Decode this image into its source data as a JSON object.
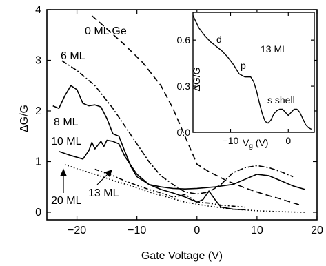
{
  "chart_data": [
    {
      "type": "line",
      "xlabel": "Gate Voltage (V)",
      "ylabel": "ΔG/G",
      "xlim": [
        -25,
        20
      ],
      "ylim": [
        -0.15,
        4.0
      ],
      "x_ticks": [
        -20,
        -10,
        0,
        10,
        20
      ],
      "y_ticks": [
        0,
        1,
        2,
        3,
        4
      ],
      "series": [
        {
          "name": "0 ML Ge",
          "style": "dashed",
          "points": [
            [
              -17.5,
              3.88
            ],
            [
              -15,
              3.62
            ],
            [
              -12,
              3.3
            ],
            [
              -9,
              2.95
            ],
            [
              -6,
              2.5
            ],
            [
              -4,
              2.05
            ],
            [
              -2,
              1.5
            ],
            [
              0,
              0.95
            ],
            [
              2,
              0.8
            ],
            [
              5,
              0.62
            ],
            [
              8,
              0.48
            ],
            [
              11,
              0.36
            ],
            [
              14,
              0.26
            ],
            [
              17,
              0.15
            ]
          ]
        },
        {
          "name": "6 ML",
          "style": "dash-dot",
          "points": [
            [
              -22.5,
              2.99
            ],
            [
              -20,
              2.8
            ],
            [
              -17,
              2.5
            ],
            [
              -14,
              2.05
            ],
            [
              -12,
              1.7
            ],
            [
              -10,
              1.35
            ],
            [
              -8,
              1.0
            ],
            [
              -6,
              0.72
            ],
            [
              -4,
              0.55
            ],
            [
              -2,
              0.4
            ],
            [
              0,
              0.36
            ],
            [
              2,
              0.4
            ],
            [
              4,
              0.55
            ],
            [
              6,
              0.78
            ],
            [
              8,
              0.88
            ],
            [
              10,
              0.92
            ],
            [
              12,
              0.88
            ],
            [
              14,
              0.8
            ],
            [
              16,
              0.7
            ]
          ]
        },
        {
          "name": "8 ML",
          "style": "solid",
          "points": [
            [
              -24,
              2.1
            ],
            [
              -23,
              2.05
            ],
            [
              -22,
              2.3
            ],
            [
              -21,
              2.5
            ],
            [
              -20,
              2.42
            ],
            [
              -19,
              2.15
            ],
            [
              -18,
              2.1
            ],
            [
              -17,
              2.12
            ],
            [
              -16,
              2.08
            ],
            [
              -15,
              1.85
            ],
            [
              -14,
              1.55
            ],
            [
              -13,
              1.5
            ],
            [
              -12,
              1.2
            ],
            [
              -11,
              0.9
            ],
            [
              -10,
              0.7
            ],
            [
              -8,
              0.55
            ],
            [
              -6,
              0.5
            ],
            [
              -4,
              0.47
            ],
            [
              -2,
              0.46
            ],
            [
              0,
              0.47
            ],
            [
              3,
              0.5
            ],
            [
              6,
              0.55
            ],
            [
              8,
              0.65
            ],
            [
              10,
              0.75
            ],
            [
              12,
              0.72
            ],
            [
              14,
              0.62
            ],
            [
              16,
              0.52
            ],
            [
              18,
              0.45
            ]
          ]
        },
        {
          "name": "10 ML",
          "style": "solid",
          "points": [
            [
              -23,
              1.2
            ],
            [
              -21,
              1.12
            ],
            [
              -19,
              1.05
            ],
            [
              -18,
              1.22
            ],
            [
              -17.5,
              1.38
            ],
            [
              -17,
              1.25
            ],
            [
              -16,
              1.4
            ],
            [
              -15.5,
              1.3
            ],
            [
              -15,
              1.42
            ],
            [
              -14,
              1.4
            ],
            [
              -13,
              1.35
            ],
            [
              -12,
              1.1
            ],
            [
              -10,
              0.75
            ],
            [
              -8,
              0.55
            ],
            [
              -6,
              0.45
            ],
            [
              -4,
              0.38
            ],
            [
              -2,
              0.3
            ],
            [
              0,
              0.2
            ],
            [
              1,
              0.25
            ],
            [
              2,
              0.42
            ],
            [
              3,
              0.25
            ],
            [
              4,
              0.1
            ],
            [
              6,
              0.06
            ],
            [
              8,
              0.05
            ]
          ]
        },
        {
          "name": "20 ML",
          "style": "dotted",
          "points": [
            [
              -22,
              0.94
            ],
            [
              -20,
              0.86
            ],
            [
              -17,
              0.75
            ],
            [
              -14,
              0.63
            ],
            [
              -11,
              0.52
            ],
            [
              -8,
              0.4
            ],
            [
              -5,
              0.3
            ],
            [
              -2,
              0.2
            ],
            [
              2,
              0.12
            ],
            [
              6,
              0.06
            ],
            [
              10,
              0.03
            ],
            [
              14,
              0.01
            ],
            [
              18,
              0.0
            ]
          ]
        },
        {
          "name": "13 ML",
          "style": "dash-dot-dot",
          "points": [
            [
              -17,
              0.85
            ],
            [
              -14,
              0.72
            ],
            [
              -12,
              0.62
            ],
            [
              -10,
              0.53
            ],
            [
              -8,
              0.45
            ],
            [
              -6,
              0.38
            ],
            [
              -4,
              0.3
            ],
            [
              -3,
              0.32
            ],
            [
              -2,
              0.35
            ],
            [
              -1,
              0.28
            ],
            [
              0,
              0.2
            ],
            [
              2,
              0.18
            ],
            [
              4,
              0.14
            ],
            [
              6,
              0.12
            ],
            [
              8,
              0.1
            ]
          ]
        }
      ],
      "labels": [
        {
          "text": "0 ML Ge"
        },
        {
          "text": "6 ML"
        },
        {
          "text": "8 ML"
        },
        {
          "text": "10 ML"
        },
        {
          "text": "20 ML"
        },
        {
          "text": "13 ML"
        }
      ]
    },
    {
      "type": "line",
      "xlabel": "V_g (V)",
      "ylabel": "ΔG/G",
      "xlim": [
        -16.5,
        4.5
      ],
      "ylim": [
        0.0,
        0.78
      ],
      "x_ticks": [
        -10,
        0
      ],
      "y_ticks": [
        0.0,
        0.3,
        0.6
      ],
      "title": "13 ML",
      "annotations": [
        "d",
        "p",
        "s shell"
      ],
      "series": [
        {
          "name": "13 ML",
          "points": [
            [
              -16.5,
              0.76
            ],
            [
              -15.5,
              0.68
            ],
            [
              -14.5,
              0.63
            ],
            [
              -13.5,
              0.59
            ],
            [
              -12.5,
              0.56
            ],
            [
              -11.5,
              0.53
            ],
            [
              -10.5,
              0.49
            ],
            [
              -9.5,
              0.44
            ],
            [
              -8.5,
              0.38
            ],
            [
              -7.5,
              0.36
            ],
            [
              -6.5,
              0.36
            ],
            [
              -6,
              0.33
            ],
            [
              -5.5,
              0.27
            ],
            [
              -5,
              0.19
            ],
            [
              -4.5,
              0.12
            ],
            [
              -4,
              0.07
            ],
            [
              -3.5,
              0.06
            ],
            [
              -3,
              0.08
            ],
            [
              -2.5,
              0.12
            ],
            [
              -2,
              0.14
            ],
            [
              -1.5,
              0.15
            ],
            [
              -1,
              0.15
            ],
            [
              -0.5,
              0.13
            ],
            [
              0,
              0.11
            ],
            [
              0.5,
              0.13
            ],
            [
              1,
              0.15
            ],
            [
              1.5,
              0.15
            ],
            [
              2,
              0.13
            ],
            [
              2.5,
              0.09
            ],
            [
              3,
              0.05
            ],
            [
              3.5,
              0.03
            ],
            [
              4,
              0.02
            ]
          ]
        }
      ]
    }
  ]
}
